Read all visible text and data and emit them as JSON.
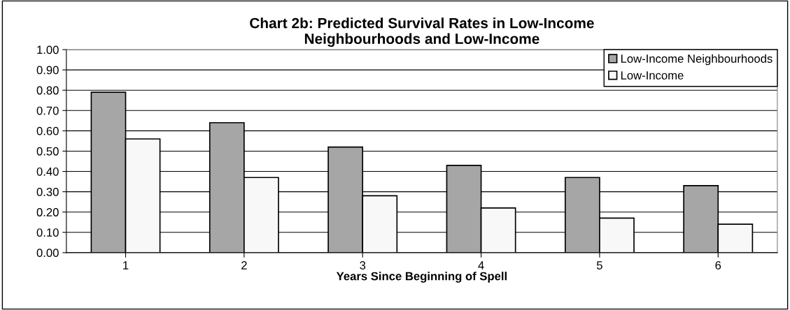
{
  "chart_data": {
    "type": "bar",
    "title": "Chart 2b: Predicted Survival Rates in Low-Income\nNeighbourhoods and Low-Income",
    "xlabel": "Years Since Beginning of Spell",
    "categories": [
      "1",
      "2",
      "3",
      "4",
      "5",
      "6"
    ],
    "series": [
      {
        "name": "Low-Income Neighbourhoods",
        "color": "#a6a6a6",
        "values": [
          0.79,
          0.64,
          0.52,
          0.43,
          0.37,
          0.33
        ]
      },
      {
        "name": "Low-Income",
        "color": "#f8f8f8",
        "values": [
          0.56,
          0.37,
          0.28,
          0.22,
          0.17,
          0.14
        ]
      }
    ],
    "ylim": [
      0,
      1
    ],
    "yticks": [
      {
        "value": 0,
        "label": "0.00"
      },
      {
        "value": 0.1,
        "label": "0.10"
      },
      {
        "value": 0.2,
        "label": "0.20"
      },
      {
        "value": 0.3,
        "label": "0.30"
      },
      {
        "value": 0.4,
        "label": "0.40"
      },
      {
        "value": 0.5,
        "label": "0.50"
      },
      {
        "value": 0.6,
        "label": "0.60"
      },
      {
        "value": 0.7,
        "label": "0.70"
      },
      {
        "value": 0.8,
        "label": "0.80"
      },
      {
        "value": 0.9,
        "label": "0.90"
      },
      {
        "value": 1,
        "label": "1.00"
      }
    ],
    "grid": "y",
    "legend": "top right"
  }
}
